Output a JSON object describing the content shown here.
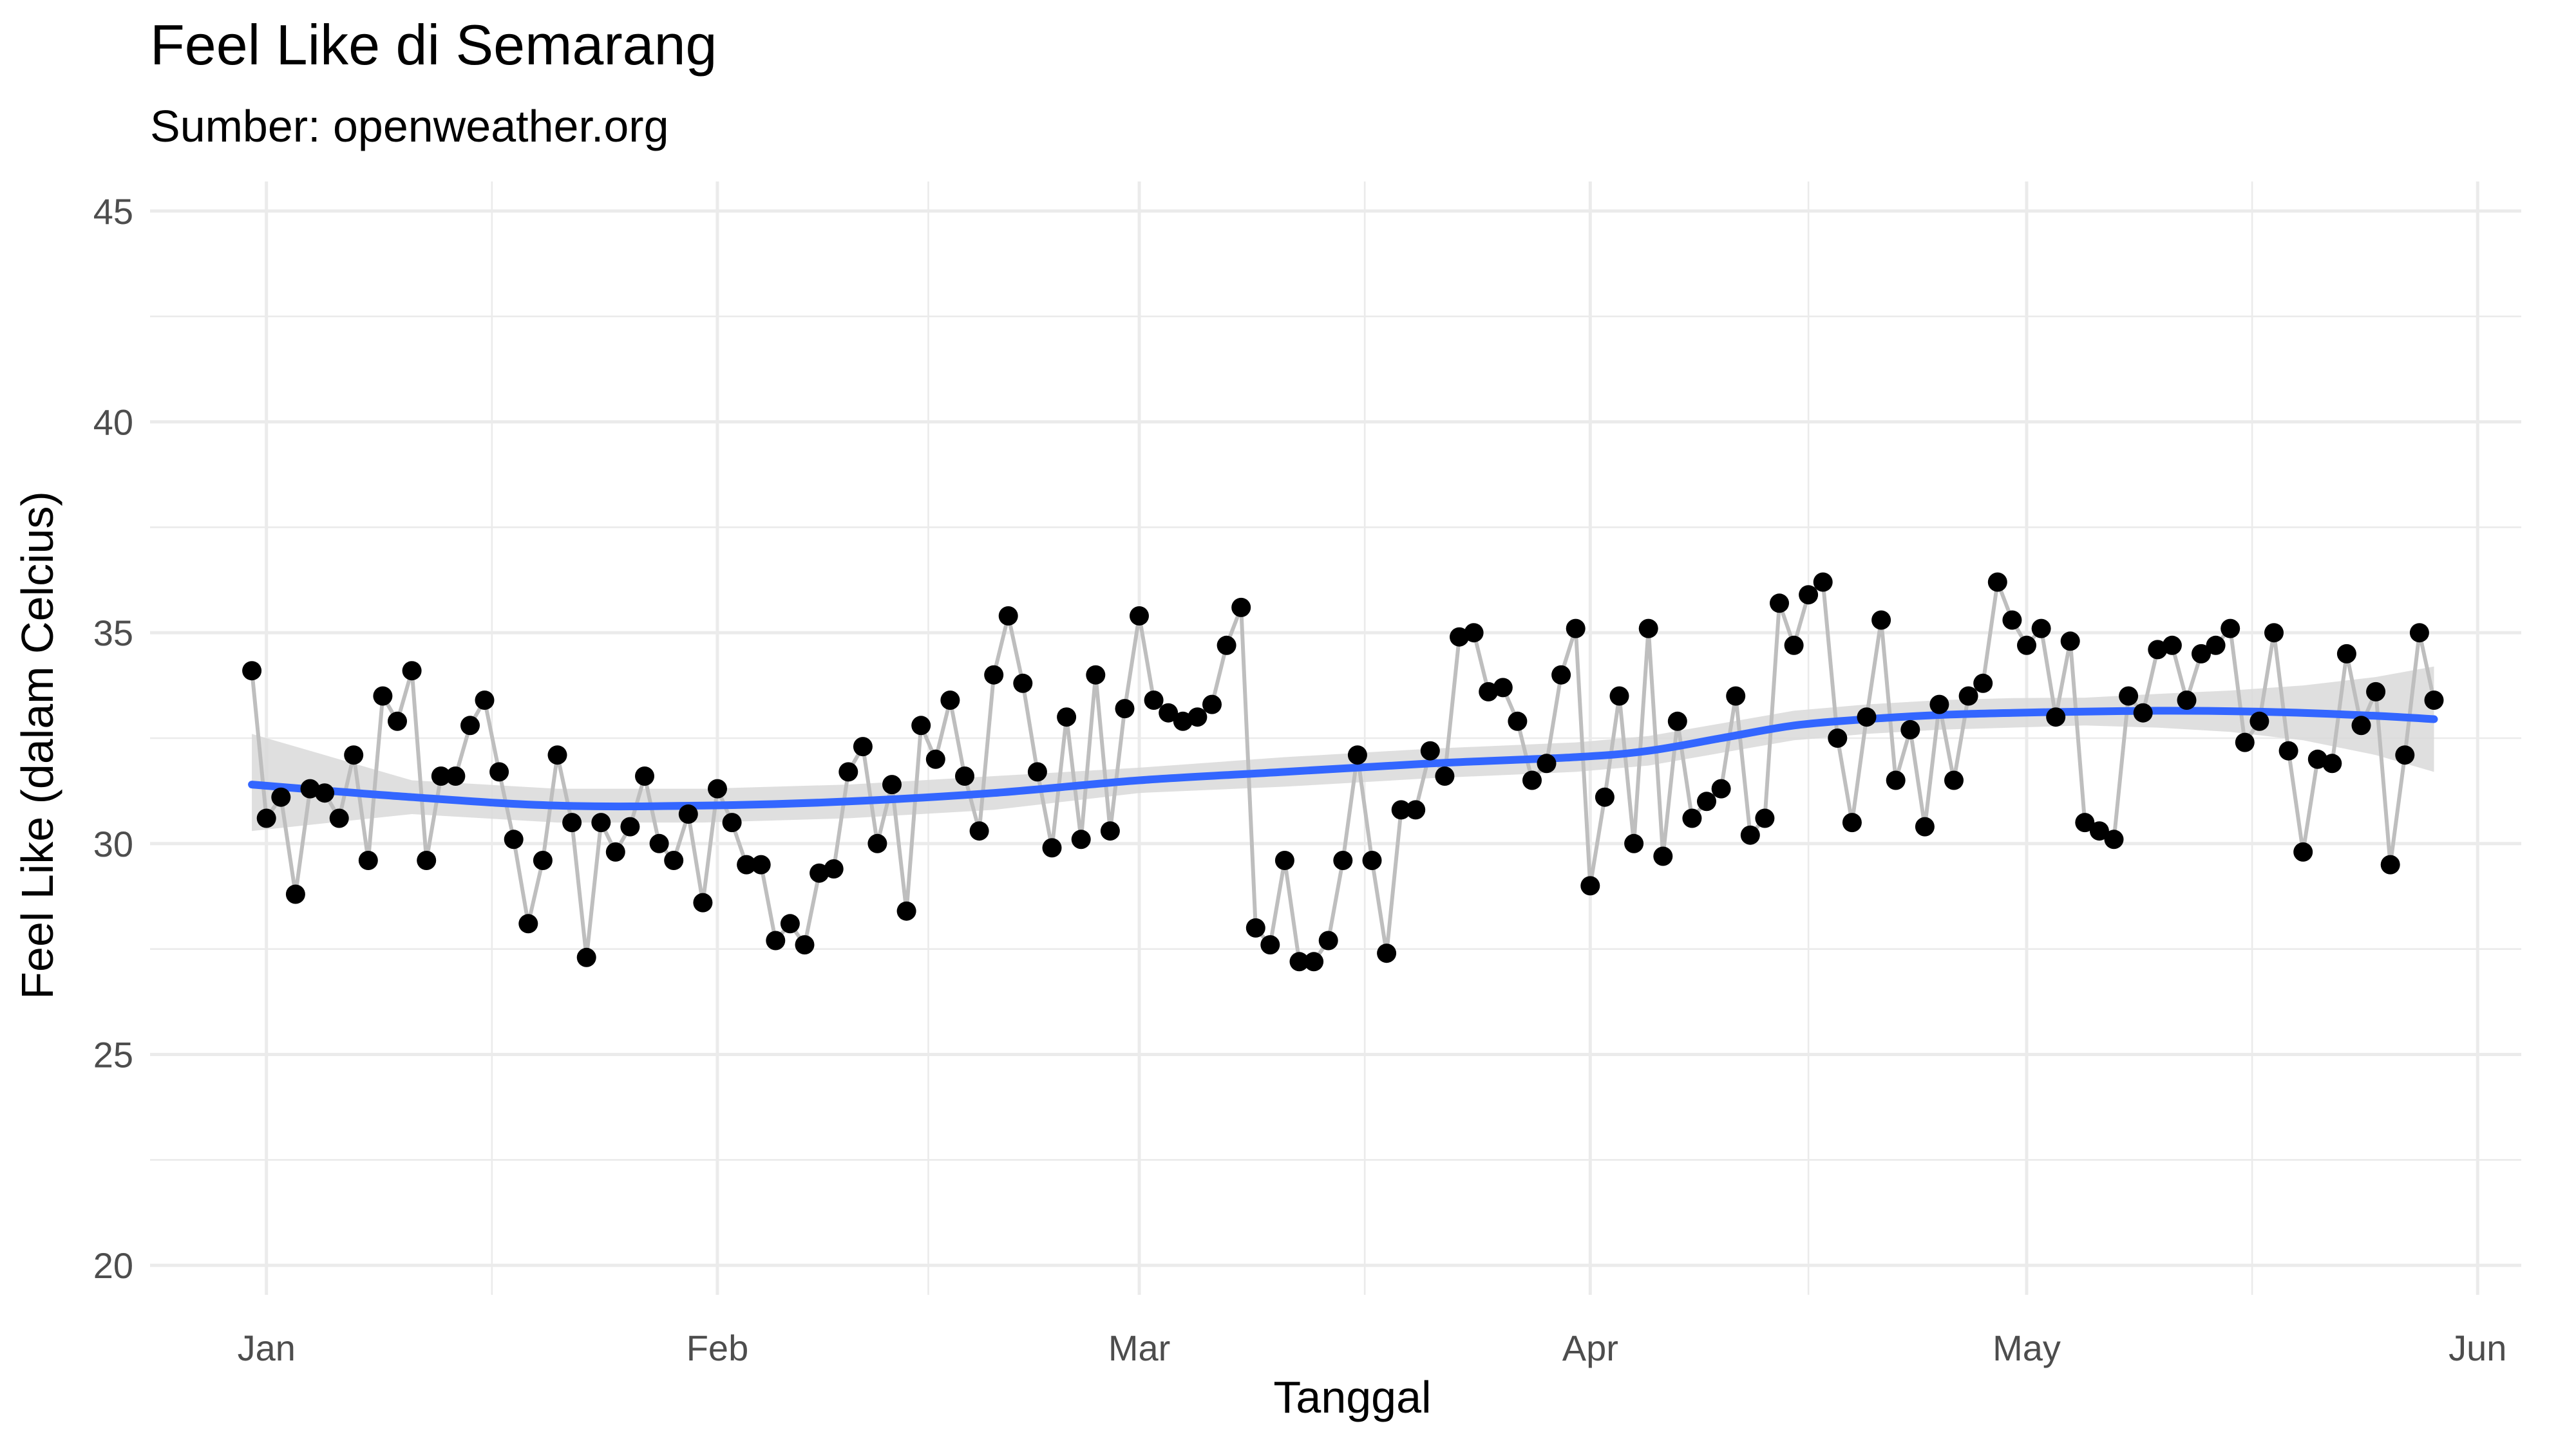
{
  "chart_data": {
    "type": "line",
    "title": "Feel Like di Semarang",
    "subtitle": "Sumber: openweather.org",
    "xlabel": "Tanggal",
    "ylabel": "Feel Like (dalam Celcius)",
    "x_tick_labels": [
      "Jan",
      "Feb",
      "Mar",
      "Apr",
      "May",
      "Jun"
    ],
    "x_tick_positions_day": [
      0,
      31,
      60,
      91,
      121,
      152
    ],
    "y_ticks": [
      20,
      25,
      30,
      35,
      40,
      45
    ],
    "y_tick_labels": [
      "20",
      "25",
      "30",
      "35",
      "40",
      "45"
    ],
    "xlim": [
      -8,
      155
    ],
    "ylim": [
      19.3,
      45.7
    ],
    "grid": true,
    "colors": {
      "observed_line": "#bebebe",
      "observed_points": "#000000",
      "trend_line": "#3366ff",
      "confidence_band": "#d9d9d9"
    },
    "series": [
      {
        "name": "Feel Like",
        "start_date": "2022-12-31",
        "day_offset_start": -1,
        "values": [
          34.1,
          30.6,
          31.1,
          28.8,
          31.3,
          31.2,
          30.6,
          32.1,
          29.6,
          33.5,
          32.9,
          34.1,
          29.6,
          31.6,
          31.6,
          32.8,
          33.4,
          31.7,
          30.1,
          28.1,
          29.6,
          32.1,
          30.5,
          27.3,
          30.5,
          29.8,
          30.4,
          31.6,
          30.0,
          29.6,
          30.7,
          28.6,
          31.3,
          30.5,
          29.5,
          29.5,
          27.7,
          28.1,
          27.6,
          29.3,
          29.4,
          31.7,
          32.3,
          30.0,
          31.4,
          28.4,
          32.8,
          32.0,
          33.4,
          31.6,
          30.3,
          34.0,
          35.4,
          33.8,
          31.7,
          29.9,
          33.0,
          30.1,
          34.0,
          30.3,
          33.2,
          35.4,
          33.4,
          33.1,
          32.9,
          33.0,
          33.3,
          34.7,
          35.6,
          28.0,
          27.6,
          29.6,
          27.2,
          27.2,
          27.7,
          29.6,
          32.1,
          29.6,
          27.4,
          30.8,
          30.8,
          32.2,
          31.6,
          34.9,
          35.0,
          33.6,
          33.7,
          32.9,
          31.5,
          31.9,
          34.0,
          35.1,
          29.0,
          31.1,
          33.5,
          30.0,
          35.1,
          29.7,
          32.9,
          30.6,
          31.0,
          31.3,
          33.5,
          30.2,
          30.6,
          35.7,
          34.7,
          35.9,
          36.2,
          32.5,
          30.5,
          33.0,
          35.3,
          31.5,
          32.7,
          30.4,
          33.3,
          31.5,
          33.5,
          33.8,
          36.2,
          35.3,
          34.7,
          35.1,
          33.0,
          34.8,
          30.5,
          30.3,
          30.1,
          33.5,
          33.1,
          34.6,
          34.7,
          33.4,
          34.5,
          34.7,
          35.1,
          32.4,
          32.9,
          35.0,
          32.2,
          29.8,
          32.0,
          31.9,
          34.5,
          32.8,
          33.6,
          29.5,
          32.1,
          35.0,
          33.4
        ]
      },
      {
        "name": "Smoothed trend",
        "x_day": [
          -1,
          10,
          20,
          30,
          40,
          50,
          60,
          70,
          80,
          90,
          95,
          100,
          105,
          110,
          115,
          120,
          125,
          130,
          135,
          140,
          145,
          149
        ],
        "values": [
          31.4,
          31.1,
          30.9,
          30.9,
          31.0,
          31.2,
          31.5,
          31.7,
          31.9,
          32.05,
          32.2,
          32.5,
          32.8,
          32.95,
          33.05,
          33.1,
          33.13,
          33.15,
          33.14,
          33.1,
          33.03,
          32.95
        ],
        "ci_lower": [
          30.3,
          30.7,
          30.5,
          30.5,
          30.6,
          30.8,
          31.2,
          31.35,
          31.55,
          31.7,
          31.85,
          32.15,
          32.45,
          32.6,
          32.7,
          32.75,
          32.8,
          32.75,
          32.65,
          32.45,
          32.1,
          31.7
        ],
        "ci_upper": [
          32.6,
          31.5,
          31.3,
          31.3,
          31.4,
          31.6,
          31.8,
          32.05,
          32.25,
          32.4,
          32.55,
          32.85,
          33.15,
          33.3,
          33.4,
          33.45,
          33.46,
          33.55,
          33.63,
          33.75,
          33.95,
          34.2
        ]
      }
    ]
  }
}
